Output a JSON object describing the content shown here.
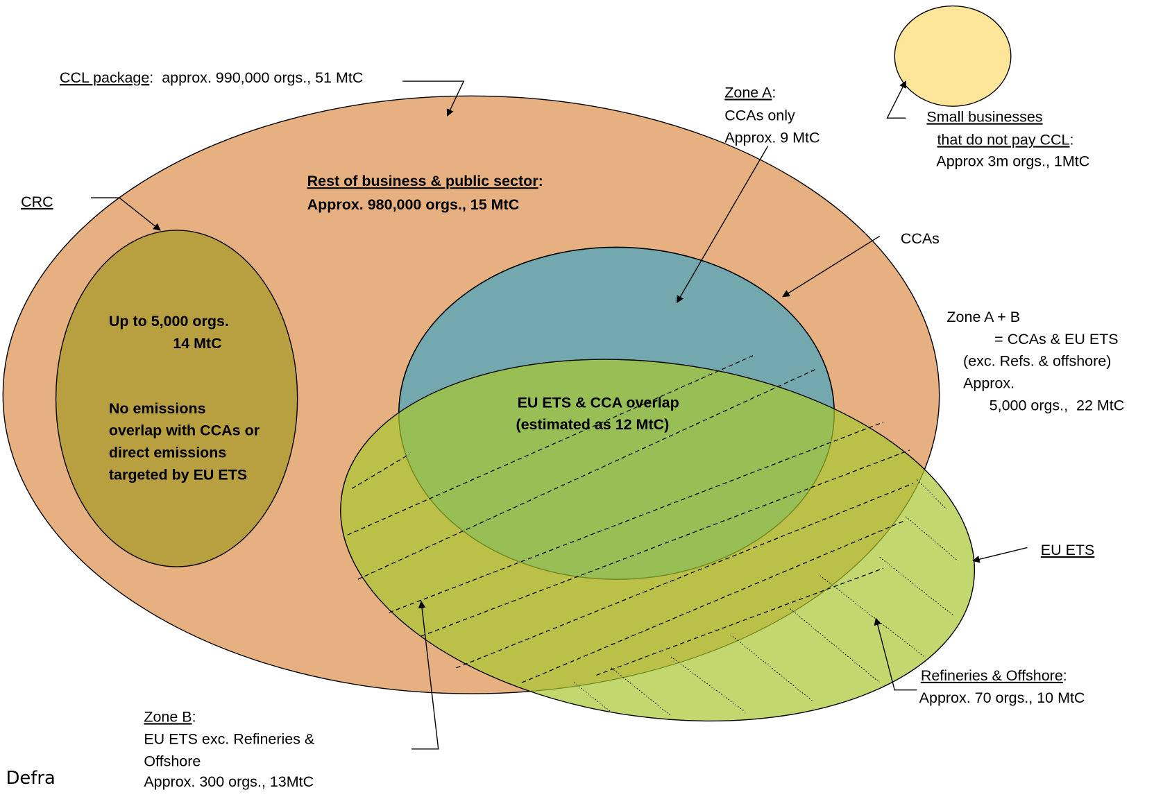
{
  "ccl": {
    "name": "CCL package",
    "detail": ":  approx. 990,000 orgs., 51 MtC"
  },
  "crc": {
    "name": "CRC",
    "lines": [
      "Up to 5,000 orgs.",
      "14 MtC",
      "No emissions",
      "overlap with CCAs or",
      "direct emissions",
      "targeted by EU ETS"
    ]
  },
  "rest": {
    "name": "Rest of business & public sector",
    "colon": ":",
    "detail": "Approx. 980,000 orgs., 15 MtC"
  },
  "zone_a": {
    "name": "Zone A",
    "colon": ":",
    "lines": [
      "CCAs only",
      "Approx. 9 MtC"
    ]
  },
  "small_businesses": {
    "name": [
      "Small businesses",
      "that do not pay CCL"
    ],
    "colon": ":",
    "detail": "Approx 3m orgs., 1MtC"
  },
  "ccas": {
    "name": "CCAs"
  },
  "zone_ab": {
    "lines": [
      "Zone A + B",
      "= CCAs & EU ETS",
      "(exc. Refs. & offshore)",
      "Approx.",
      "5,000 orgs.,  22 MtC"
    ]
  },
  "overlap": {
    "lines": [
      "EU ETS & CCA overlap",
      "(estimated as 12 MtC)"
    ]
  },
  "eu_ets": {
    "name": "EU ETS"
  },
  "refineries": {
    "name": "Refineries & Offshore",
    "colon": ":",
    "detail": "Approx. 70 orgs., 10 MtC"
  },
  "zone_b": {
    "name": "Zone B",
    "colon": ":",
    "lines": [
      "EU ETS exc. Refineries &",
      "Offshore",
      "Approx. 300 orgs., 13MtC"
    ]
  },
  "source": "Defra"
}
